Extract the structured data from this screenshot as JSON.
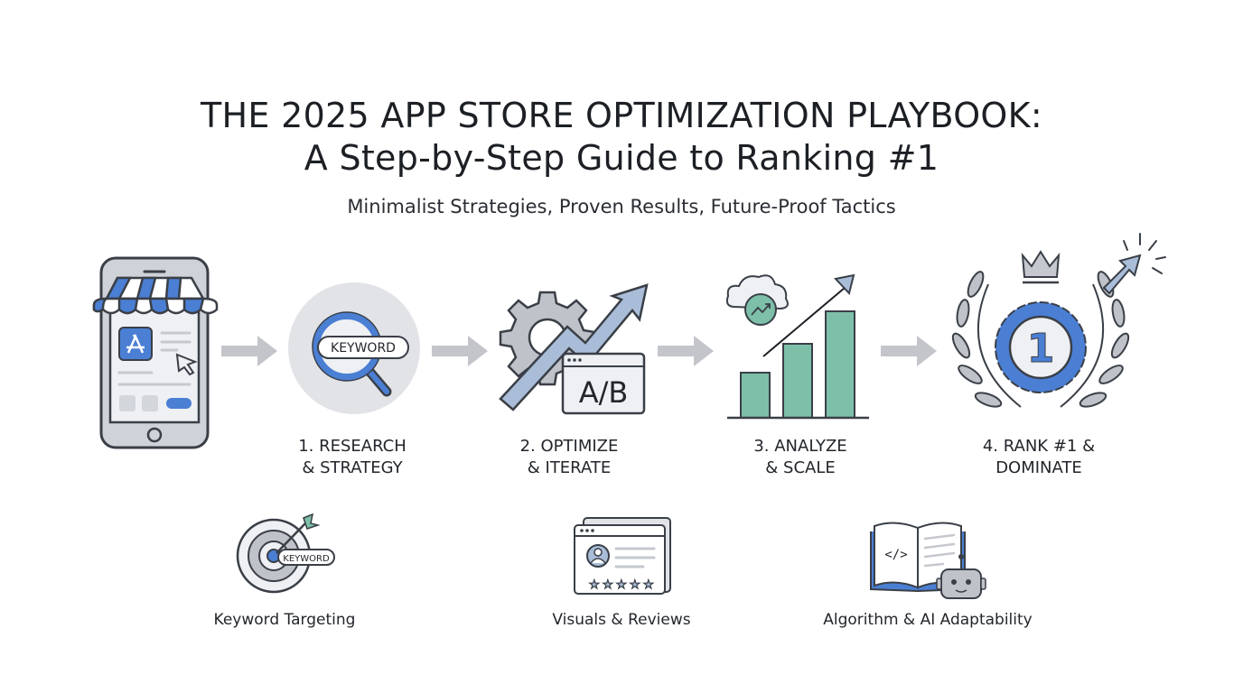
{
  "header": {
    "title_line1": "THE 2025 APP STORE OPTIMIZATION PLAYBOOK:",
    "title_line2": "A Step-by-Step Guide to Ranking #1",
    "subtitle": "Minimalist Strategies, Proven Results, Future-Proof Tactics"
  },
  "steps": [
    {
      "label_line1": "1. RESEARCH",
      "label_line2": "& STRATEGY",
      "icon": "magnifier-keyword-icon",
      "badge": "KEYWORD"
    },
    {
      "label_line1": "2. OPTIMIZE",
      "label_line2": "& ITERATE",
      "icon": "gear-ab-test-icon",
      "badge": "A/B"
    },
    {
      "label_line1": "3. ANALYZE",
      "label_line2": "& SCALE",
      "icon": "growth-chart-icon"
    },
    {
      "label_line1": "4. RANK #1 &",
      "label_line2": "DOMINATE",
      "icon": "laurel-medal-icon",
      "badge": "1"
    }
  ],
  "features": [
    {
      "label": "Keyword Targeting",
      "icon": "target-keyword-icon",
      "badge": "KEYWORD"
    },
    {
      "label": "Visuals & Reviews",
      "icon": "reviews-window-icon"
    },
    {
      "label": "Algorithm & AI Adaptability",
      "icon": "book-robot-icon",
      "code": "</>"
    }
  ],
  "colors": {
    "blue": "#4a7fd4",
    "teal": "#7dbfa9",
    "gray": "#c5c8ce",
    "arrow": "#c3c5ca",
    "outline": "#3a3f47"
  }
}
